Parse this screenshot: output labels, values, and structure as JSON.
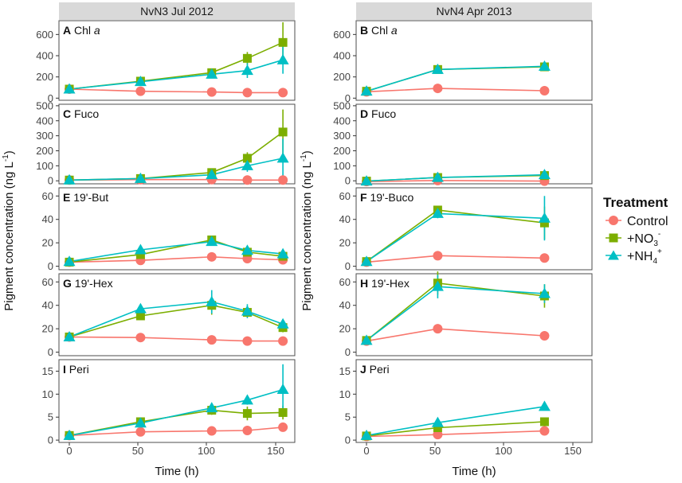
{
  "figure": {
    "y_axis_title": "Pigment concentration (ng L",
    "y_axis_title_sup": "-1",
    "y_axis_title_end": ")",
    "x_axis_title": "Time (h)",
    "x_ticks": [
      "0",
      "50",
      "100",
      "150"
    ],
    "x_ticks_right": [
      "0",
      "50",
      "100",
      "150"
    ],
    "x_range": [
      -7,
      152
    ]
  },
  "columns": [
    {
      "strip": "NvN3 Jul 2012"
    },
    {
      "strip": "NvN4 Apr 2013"
    }
  ],
  "legend": {
    "title": "Treatment",
    "items": [
      {
        "label": "Control",
        "color": "#f8766d",
        "shape": "circle"
      },
      {
        "label": "+NO",
        "sub": "3",
        "sup": "-",
        "color": "#7cae00",
        "shape": "square"
      },
      {
        "label": "+NH",
        "sub": "4",
        "sup": "+",
        "color": "#00bfc4",
        "shape": "triangle"
      }
    ]
  },
  "chart_data": [
    {
      "type": "line",
      "panel": "A",
      "letter": "A",
      "label": "Chl",
      "label_italic": "a",
      "ylim": [
        -20,
        730
      ],
      "yticks": [
        0,
        200,
        400,
        600
      ],
      "x": [
        0,
        48,
        96,
        120,
        144
      ],
      "series": [
        {
          "name": "Control",
          "values": [
            85,
            65,
            58,
            52,
            52
          ],
          "err": [
            0,
            0,
            0,
            0,
            0
          ]
        },
        {
          "name": "+NO3-",
          "values": [
            85,
            160,
            240,
            375,
            525
          ],
          "err": [
            0,
            0,
            30,
            60,
            190
          ]
        },
        {
          "name": "+NH4+",
          "values": [
            85,
            155,
            225,
            260,
            360
          ],
          "err": [
            0,
            0,
            30,
            70,
            130
          ]
        }
      ]
    },
    {
      "type": "line",
      "panel": "B",
      "letter": "B",
      "label": "Chl",
      "label_italic": "a",
      "ylim": [
        -20,
        730
      ],
      "yticks": [
        0,
        200,
        400,
        600
      ],
      "x": [
        0,
        48,
        120
      ],
      "series": [
        {
          "name": "Control",
          "values": [
            60,
            92,
            70
          ],
          "err": [
            0,
            0,
            0
          ]
        },
        {
          "name": "+NO3-",
          "values": [
            65,
            270,
            295
          ],
          "err": [
            0,
            20,
            40
          ]
        },
        {
          "name": "+NH4+",
          "values": [
            65,
            270,
            300
          ],
          "err": [
            0,
            20,
            40
          ]
        }
      ]
    },
    {
      "type": "line",
      "panel": "C",
      "letter": "C",
      "label": "Fuco",
      "label_italic": "",
      "ylim": [
        -20,
        510
      ],
      "yticks": [
        0,
        100,
        200,
        300,
        400,
        500
      ],
      "x": [
        0,
        48,
        96,
        120,
        144
      ],
      "series": [
        {
          "name": "Control",
          "values": [
            5,
            8,
            8,
            5,
            5
          ],
          "err": [
            0,
            0,
            0,
            0,
            0
          ]
        },
        {
          "name": "+NO3-",
          "values": [
            5,
            15,
            55,
            150,
            325
          ],
          "err": [
            0,
            0,
            10,
            40,
            150
          ]
        },
        {
          "name": "+NH4+",
          "values": [
            5,
            15,
            40,
            100,
            150
          ],
          "err": [
            0,
            0,
            10,
            40,
            130
          ]
        }
      ]
    },
    {
      "type": "line",
      "panel": "D",
      "letter": "D",
      "label": "Fuco",
      "label_italic": "",
      "ylim": [
        -20,
        510
      ],
      "yticks": [
        0,
        100,
        200,
        300,
        400,
        500
      ],
      "x": [
        0,
        48,
        120
      ],
      "series": [
        {
          "name": "Control",
          "values": [
            -5,
            2,
            -2
          ],
          "err": [
            0,
            0,
            0
          ]
        },
        {
          "name": "+NO3-",
          "values": [
            -2,
            22,
            35
          ],
          "err": [
            0,
            5,
            5
          ]
        },
        {
          "name": "+NH4+",
          "values": [
            -2,
            22,
            40
          ],
          "err": [
            0,
            5,
            5
          ]
        }
      ]
    },
    {
      "type": "line",
      "panel": "E",
      "letter": "E",
      "label": "19'-But",
      "label_italic": "",
      "ylim": [
        -3,
        67
      ],
      "yticks": [
        0,
        20,
        40,
        60
      ],
      "x": [
        0,
        48,
        96,
        120,
        144
      ],
      "series": [
        {
          "name": "Control",
          "values": [
            3.5,
            5,
            8,
            6.5,
            5.5
          ],
          "err": [
            0,
            0,
            0,
            0,
            0
          ]
        },
        {
          "name": "+NO3-",
          "values": [
            3.5,
            10,
            22.5,
            12,
            8.5
          ],
          "err": [
            0,
            0,
            2,
            2,
            2
          ]
        },
        {
          "name": "+NH4+",
          "values": [
            4,
            14,
            21,
            13.5,
            10.5
          ],
          "err": [
            0,
            0,
            3,
            2,
            2
          ]
        }
      ]
    },
    {
      "type": "line",
      "panel": "F",
      "letter": "F",
      "label": "19'-Buco",
      "label_italic": "",
      "ylim": [
        -3,
        67
      ],
      "yticks": [
        0,
        20,
        40,
        60
      ],
      "x": [
        0,
        48,
        120
      ],
      "series": [
        {
          "name": "Control",
          "values": [
            3.5,
            9,
            7
          ],
          "err": [
            0,
            0,
            0
          ]
        },
        {
          "name": "+NO3-",
          "values": [
            4,
            48,
            37
          ],
          "err": [
            0,
            3,
            14
          ]
        },
        {
          "name": "+NH4+",
          "values": [
            4,
            45,
            41
          ],
          "err": [
            0,
            4,
            19
          ]
        }
      ]
    },
    {
      "type": "line",
      "panel": "G",
      "letter": "G",
      "label": "19'-Hex",
      "label_italic": "",
      "ylim": [
        -3,
        67
      ],
      "yticks": [
        0,
        20,
        40,
        60
      ],
      "x": [
        0,
        48,
        96,
        120,
        144
      ],
      "series": [
        {
          "name": "Control",
          "values": [
            13,
            12.5,
            10.5,
            9.5,
            9.5
          ],
          "err": [
            0,
            0,
            0,
            0,
            0
          ]
        },
        {
          "name": "+NO3-",
          "values": [
            13,
            31,
            40,
            34,
            21
          ],
          "err": [
            0,
            0,
            8,
            4,
            4
          ]
        },
        {
          "name": "+NH4+",
          "values": [
            13,
            37,
            43,
            35,
            24
          ],
          "err": [
            0,
            0,
            10,
            6,
            4
          ]
        }
      ]
    },
    {
      "type": "line",
      "panel": "H",
      "letter": "H",
      "label": "19'-Hex",
      "label_italic": "",
      "ylim": [
        -3,
        67
      ],
      "yticks": [
        0,
        20,
        40,
        60
      ],
      "x": [
        0,
        48,
        120
      ],
      "series": [
        {
          "name": "Control",
          "values": [
            9.5,
            20,
            14
          ],
          "err": [
            0,
            0,
            0
          ]
        },
        {
          "name": "+NO3-",
          "values": [
            10,
            59,
            48
          ],
          "err": [
            0,
            10,
            10
          ]
        },
        {
          "name": "+NH4+",
          "values": [
            10,
            56,
            50
          ],
          "err": [
            0,
            10,
            8
          ]
        }
      ]
    },
    {
      "type": "line",
      "panel": "I",
      "letter": "I",
      "label": "Peri",
      "label_italic": "",
      "ylim": [
        -0.5,
        17.5
      ],
      "yticks": [
        0,
        5,
        10,
        15
      ],
      "x": [
        0,
        48,
        96,
        120,
        144
      ],
      "series": [
        {
          "name": "Control",
          "values": [
            1,
            1.8,
            2,
            2.1,
            2.8
          ],
          "err": [
            0,
            0,
            0,
            0,
            0
          ]
        },
        {
          "name": "+NO3-",
          "values": [
            1,
            4,
            6.5,
            5.8,
            6
          ],
          "err": [
            0,
            0,
            1,
            1.5,
            1.5
          ]
        },
        {
          "name": "+NH4+",
          "values": [
            1,
            3.7,
            7,
            8.7,
            11
          ],
          "err": [
            0,
            0,
            1,
            1,
            5.5
          ]
        }
      ]
    },
    {
      "type": "line",
      "panel": "J",
      "letter": "J",
      "label": "Peri",
      "label_italic": "",
      "ylim": [
        -0.5,
        17.5
      ],
      "yticks": [
        0,
        5,
        10,
        15
      ],
      "x": [
        0,
        48,
        120
      ],
      "series": [
        {
          "name": "Control",
          "values": [
            0.8,
            1.2,
            2
          ],
          "err": [
            0,
            0,
            0
          ]
        },
        {
          "name": "+NO3-",
          "values": [
            0.9,
            2.7,
            4
          ],
          "err": [
            0,
            0.5,
            0.5
          ]
        },
        {
          "name": "+NH4+",
          "values": [
            1,
            3.8,
            7.3
          ],
          "err": [
            0,
            0.4,
            0.3
          ]
        }
      ]
    }
  ]
}
